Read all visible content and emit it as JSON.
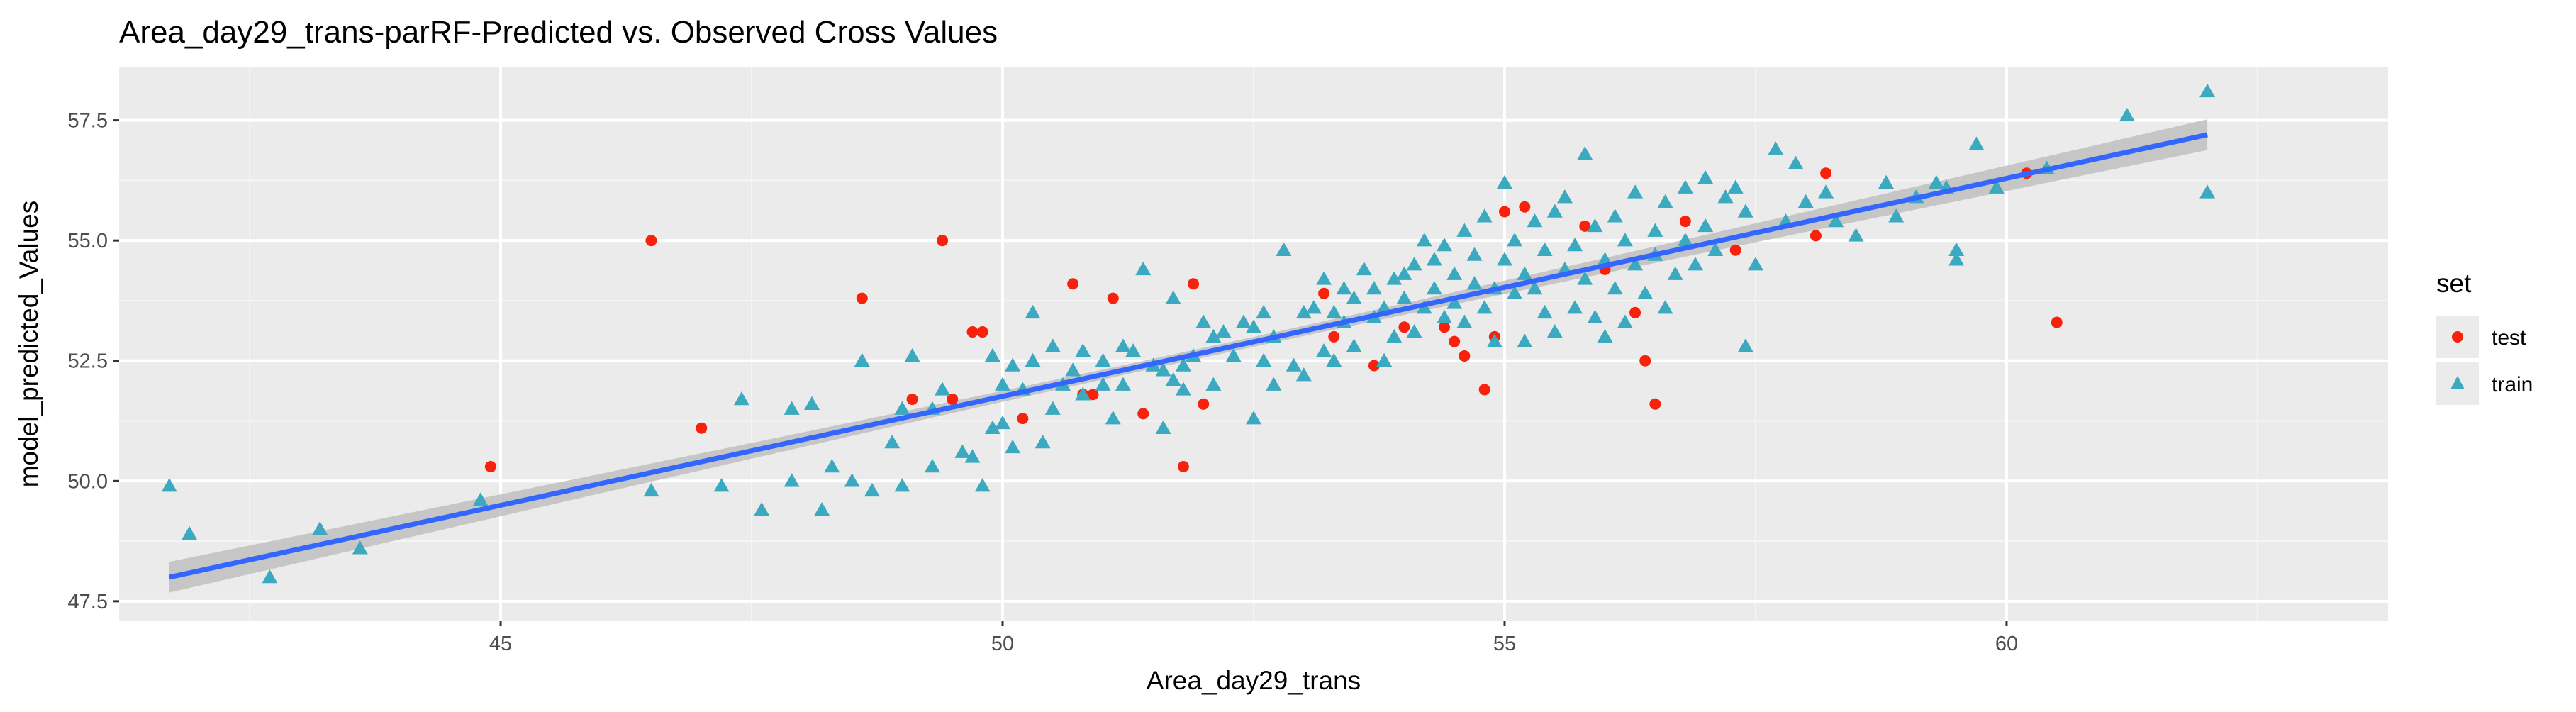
{
  "chart_data": {
    "type": "scatter",
    "title": "Area_day29_trans-parRF-Predicted vs. Observed Cross Values",
    "xlabel": "Area_day29_trans",
    "ylabel": "model_predicted_Values",
    "xlim": [
      41.2,
      63.8
    ],
    "ylim": [
      47.1,
      58.6
    ],
    "x_ticks": [
      45,
      50,
      55,
      60
    ],
    "x_tick_labels": [
      "45",
      "50",
      "55",
      "60"
    ],
    "y_ticks": [
      47.5,
      50.0,
      52.5,
      55.0,
      57.5
    ],
    "y_tick_labels": [
      "47.5",
      "50.0",
      "52.5",
      "55.0",
      "57.5"
    ],
    "grid": true,
    "background": "#ebebeb",
    "legend": {
      "title": "set",
      "position": "right"
    },
    "series": [
      {
        "name": "test",
        "marker": "circle",
        "color": "#f8210c",
        "points": [
          [
            44.9,
            50.3
          ],
          [
            46.5,
            55.0
          ],
          [
            47.0,
            51.1
          ],
          [
            48.6,
            53.8
          ],
          [
            49.1,
            51.7
          ],
          [
            49.4,
            55.0
          ],
          [
            49.5,
            51.7
          ],
          [
            49.7,
            53.1
          ],
          [
            49.8,
            53.1
          ],
          [
            50.2,
            51.3
          ],
          [
            50.7,
            54.1
          ],
          [
            50.8,
            51.8
          ],
          [
            50.9,
            51.8
          ],
          [
            51.1,
            53.8
          ],
          [
            51.4,
            51.4
          ],
          [
            51.8,
            50.3
          ],
          [
            51.9,
            54.1
          ],
          [
            52.0,
            51.6
          ],
          [
            53.2,
            53.9
          ],
          [
            53.3,
            53.0
          ],
          [
            53.7,
            52.4
          ],
          [
            54.0,
            53.2
          ],
          [
            54.4,
            53.2
          ],
          [
            54.5,
            52.9
          ],
          [
            54.6,
            52.6
          ],
          [
            54.8,
            51.9
          ],
          [
            54.9,
            53.0
          ],
          [
            55.0,
            55.6
          ],
          [
            55.2,
            55.7
          ],
          [
            55.8,
            55.3
          ],
          [
            56.0,
            54.4
          ],
          [
            56.3,
            53.5
          ],
          [
            56.4,
            52.5
          ],
          [
            56.5,
            51.6
          ],
          [
            56.8,
            55.4
          ],
          [
            57.3,
            54.8
          ],
          [
            58.1,
            55.1
          ],
          [
            58.2,
            56.4
          ],
          [
            60.2,
            56.4
          ],
          [
            60.5,
            53.3
          ]
        ]
      },
      {
        "name": "train",
        "marker": "triangle",
        "color": "#3ba9bf",
        "points": [
          [
            41.7,
            49.9
          ],
          [
            41.9,
            48.9
          ],
          [
            42.7,
            48.0
          ],
          [
            43.2,
            49.0
          ],
          [
            43.6,
            48.6
          ],
          [
            44.8,
            49.6
          ],
          [
            46.5,
            49.8
          ],
          [
            47.2,
            49.9
          ],
          [
            47.4,
            51.7
          ],
          [
            47.6,
            49.4
          ],
          [
            47.9,
            50.0
          ],
          [
            47.9,
            51.5
          ],
          [
            48.1,
            51.6
          ],
          [
            48.2,
            49.4
          ],
          [
            48.3,
            50.3
          ],
          [
            48.5,
            50.0
          ],
          [
            48.6,
            52.5
          ],
          [
            48.7,
            49.8
          ],
          [
            48.9,
            50.8
          ],
          [
            49.0,
            49.9
          ],
          [
            49.0,
            51.5
          ],
          [
            49.1,
            52.6
          ],
          [
            49.3,
            50.3
          ],
          [
            49.3,
            51.5
          ],
          [
            49.4,
            51.9
          ],
          [
            49.6,
            50.6
          ],
          [
            49.7,
            50.5
          ],
          [
            49.8,
            49.9
          ],
          [
            49.9,
            51.1
          ],
          [
            49.9,
            52.6
          ],
          [
            50.0,
            51.2
          ],
          [
            50.0,
            52.0
          ],
          [
            50.1,
            50.7
          ],
          [
            50.1,
            52.4
          ],
          [
            50.2,
            51.9
          ],
          [
            50.3,
            53.5
          ],
          [
            50.3,
            52.5
          ],
          [
            50.4,
            50.8
          ],
          [
            50.5,
            52.8
          ],
          [
            50.5,
            51.5
          ],
          [
            50.6,
            52.0
          ],
          [
            50.7,
            52.3
          ],
          [
            50.8,
            51.8
          ],
          [
            50.8,
            52.7
          ],
          [
            51.0,
            52.0
          ],
          [
            51.0,
            52.5
          ],
          [
            51.1,
            51.3
          ],
          [
            51.2,
            52.8
          ],
          [
            51.2,
            52.0
          ],
          [
            51.3,
            52.7
          ],
          [
            51.4,
            54.4
          ],
          [
            51.5,
            52.4
          ],
          [
            51.6,
            51.1
          ],
          [
            51.6,
            52.3
          ],
          [
            51.7,
            52.1
          ],
          [
            51.7,
            53.8
          ],
          [
            51.8,
            51.9
          ],
          [
            51.8,
            52.4
          ],
          [
            51.9,
            52.6
          ],
          [
            52.0,
            53.3
          ],
          [
            52.1,
            52.0
          ],
          [
            52.1,
            53.0
          ],
          [
            52.2,
            53.1
          ],
          [
            52.3,
            52.6
          ],
          [
            52.4,
            53.3
          ],
          [
            52.5,
            51.3
          ],
          [
            52.5,
            53.2
          ],
          [
            52.6,
            52.5
          ],
          [
            52.6,
            53.5
          ],
          [
            52.7,
            52.0
          ],
          [
            52.7,
            53.0
          ],
          [
            52.8,
            54.8
          ],
          [
            52.9,
            52.4
          ],
          [
            53.0,
            53.5
          ],
          [
            53.0,
            52.2
          ],
          [
            53.1,
            53.6
          ],
          [
            53.2,
            52.7
          ],
          [
            53.2,
            54.2
          ],
          [
            53.3,
            52.5
          ],
          [
            53.3,
            53.5
          ],
          [
            53.4,
            53.3
          ],
          [
            53.4,
            54.0
          ],
          [
            53.5,
            53.8
          ],
          [
            53.5,
            52.8
          ],
          [
            53.6,
            54.4
          ],
          [
            53.7,
            53.4
          ],
          [
            53.7,
            54.0
          ],
          [
            53.8,
            52.5
          ],
          [
            53.8,
            53.6
          ],
          [
            53.9,
            54.2
          ],
          [
            53.9,
            53.0
          ],
          [
            54.0,
            54.3
          ],
          [
            54.0,
            53.8
          ],
          [
            54.1,
            54.5
          ],
          [
            54.1,
            53.1
          ],
          [
            54.2,
            55.0
          ],
          [
            54.2,
            53.6
          ],
          [
            54.3,
            54.0
          ],
          [
            54.3,
            54.6
          ],
          [
            54.4,
            53.4
          ],
          [
            54.4,
            54.9
          ],
          [
            54.5,
            53.7
          ],
          [
            54.5,
            54.3
          ],
          [
            54.6,
            55.2
          ],
          [
            54.6,
            53.3
          ],
          [
            54.7,
            54.1
          ],
          [
            54.7,
            54.7
          ],
          [
            54.8,
            53.6
          ],
          [
            54.8,
            55.5
          ],
          [
            54.9,
            54.0
          ],
          [
            54.9,
            52.9
          ],
          [
            55.0,
            56.2
          ],
          [
            55.0,
            54.6
          ],
          [
            55.1,
            53.9
          ],
          [
            55.1,
            55.0
          ],
          [
            55.2,
            54.3
          ],
          [
            55.2,
            52.9
          ],
          [
            55.3,
            55.4
          ],
          [
            55.3,
            54.0
          ],
          [
            55.4,
            53.5
          ],
          [
            55.4,
            54.8
          ],
          [
            55.5,
            55.6
          ],
          [
            55.5,
            53.1
          ],
          [
            55.6,
            54.4
          ],
          [
            55.6,
            55.9
          ],
          [
            55.7,
            53.6
          ],
          [
            55.7,
            54.9
          ],
          [
            55.8,
            56.8
          ],
          [
            55.8,
            54.2
          ],
          [
            55.9,
            53.4
          ],
          [
            55.9,
            55.3
          ],
          [
            56.0,
            54.6
          ],
          [
            56.0,
            53.0
          ],
          [
            56.1,
            55.5
          ],
          [
            56.1,
            54.0
          ],
          [
            56.2,
            55.0
          ],
          [
            56.2,
            53.3
          ],
          [
            56.3,
            54.5
          ],
          [
            56.3,
            56.0
          ],
          [
            56.4,
            53.9
          ],
          [
            56.5,
            55.2
          ],
          [
            56.5,
            54.7
          ],
          [
            56.6,
            55.8
          ],
          [
            56.6,
            53.6
          ],
          [
            56.7,
            54.3
          ],
          [
            56.8,
            56.1
          ],
          [
            56.8,
            55.0
          ],
          [
            56.9,
            54.5
          ],
          [
            57.0,
            56.3
          ],
          [
            57.0,
            55.3
          ],
          [
            57.1,
            54.8
          ],
          [
            57.2,
            55.9
          ],
          [
            57.3,
            56.1
          ],
          [
            57.4,
            55.6
          ],
          [
            57.4,
            52.8
          ],
          [
            57.5,
            54.5
          ],
          [
            57.7,
            56.9
          ],
          [
            57.8,
            55.4
          ],
          [
            57.9,
            56.6
          ],
          [
            58.0,
            55.8
          ],
          [
            58.2,
            56.0
          ],
          [
            58.3,
            55.4
          ],
          [
            58.5,
            55.1
          ],
          [
            58.8,
            56.2
          ],
          [
            58.9,
            55.5
          ],
          [
            59.1,
            55.9
          ],
          [
            59.3,
            56.2
          ],
          [
            59.4,
            56.1
          ],
          [
            59.5,
            54.8
          ],
          [
            59.5,
            54.6
          ],
          [
            59.7,
            57.0
          ],
          [
            59.9,
            56.1
          ],
          [
            60.4,
            56.5
          ],
          [
            61.2,
            57.6
          ],
          [
            62.0,
            58.1
          ],
          [
            62.0,
            56.0
          ]
        ]
      }
    ],
    "fit_line": {
      "x": [
        41.7,
        62.0
      ],
      "y": [
        48.0,
        57.2
      ],
      "ci_halfwidth_ends": 0.32,
      "ci_halfwidth_center": 0.1,
      "color": "#3366ff",
      "band_color": "#c0c0c0"
    }
  }
}
